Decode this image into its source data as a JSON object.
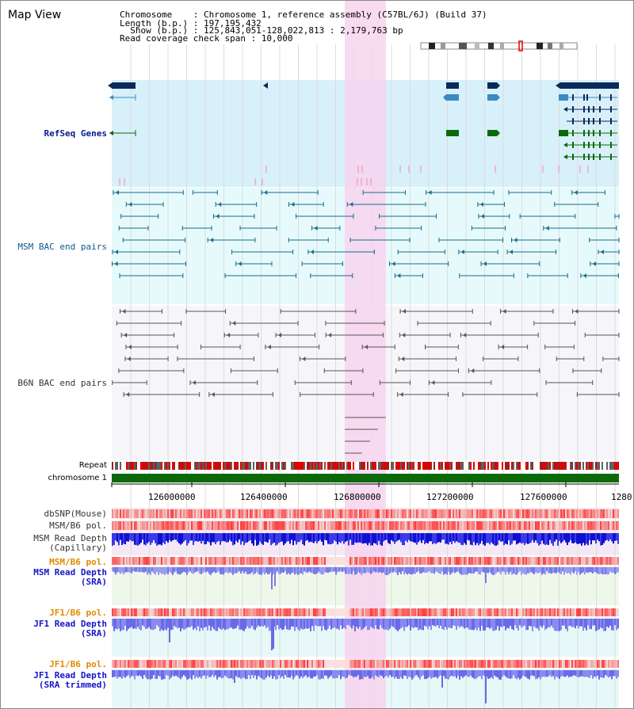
{
  "page": {
    "title": "Map View",
    "header_lines": [
      "Chromosome    : Chromosome 1, reference assembly (C57BL/6J) (Build 37)",
      "Length (b.p.) : 197,195,432",
      "  Show (b.p.) : 125,843,051-128,022,813 : 2,179,763 bp",
      "Read coverage check span : 10,000"
    ]
  },
  "tracks": [
    {
      "id": "refseq",
      "label": "RefSeq Genes",
      "color": "#0a1a8a"
    },
    {
      "id": "msm-bac",
      "label": "MSM BAC end pairs",
      "color": "#0a6a9a"
    },
    {
      "id": "b6n-bac",
      "label": "B6N BAC end pairs",
      "color": "#444444"
    },
    {
      "id": "repeat",
      "label": "Repeat",
      "color": "#000000"
    },
    {
      "id": "chromosome",
      "label": "chromosome 1",
      "color": "#000000"
    },
    {
      "id": "dbsnp",
      "label": "dbSNP(Mouse)",
      "color": "#333333"
    },
    {
      "id": "msm-b6-pol",
      "label": "MSM/B6 pol.",
      "color": "#333333"
    },
    {
      "id": "msm-depth-cap",
      "label": "MSM Read Depth\n(Capillary)",
      "color": "#333333"
    },
    {
      "id": "msm-b6-pol-2",
      "label": "MSM/B6 pol.",
      "color": "#e08a00"
    },
    {
      "id": "msm-depth-sra",
      "label": "MSM Read Depth\n(SRA)",
      "color": "#1515c8"
    },
    {
      "id": "jf1-b6-pol",
      "label": "JF1/B6 pol.",
      "color": "#e08a00"
    },
    {
      "id": "jf1-depth-sra",
      "label": "JF1 Read Depth\n(SRA)",
      "color": "#1515c8"
    },
    {
      "id": "jf1-b6-pol-2",
      "label": "JF1/B6 pol.",
      "color": "#e08a00"
    },
    {
      "id": "jf1-depth-trim",
      "label": "JF1 Read Depth\n(SRA trimmed)",
      "color": "#1515c8"
    }
  ],
  "axis": {
    "ticks": [
      "126000000",
      "126400000",
      "126800000",
      "127200000",
      "127600000",
      "1280"
    ]
  },
  "colors": {
    "highlight": "#f7d3ee",
    "refseq_bg": "#d8f0fa",
    "msm_bg": "#e6fafc",
    "b6n_bg": "#f6f6fa",
    "gene_dark": "#0a2a5a",
    "gene_light": "#3a8ac0",
    "gene_green": "#0a6a0a",
    "chrom_green": "#0a6a0a"
  }
}
